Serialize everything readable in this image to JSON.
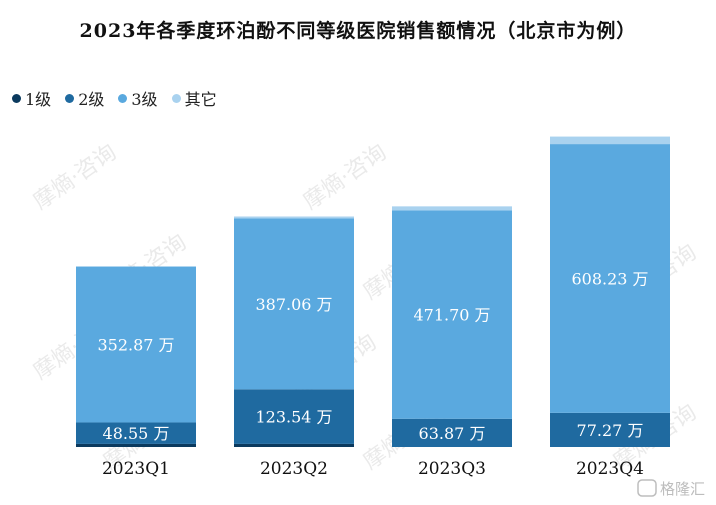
{
  "chart_data": {
    "type": "bar",
    "title": "2023年各季度环泊酚不同等级医院销售额情况（北京市为例）",
    "categories": [
      "2023Q1",
      "2023Q2",
      "2023Q3",
      "2023Q4"
    ],
    "series": [
      {
        "name": "1级",
        "color": "#0b3a5e",
        "values": [
          7,
          7,
          0,
          0
        ]
      },
      {
        "name": "2级",
        "color": "#1f6aa0",
        "values": [
          48.55,
          123.54,
          63.87,
          77.27
        ]
      },
      {
        "name": "3级",
        "color": "#5aa9df",
        "values": [
          352.87,
          387.06,
          471.7,
          608.23
        ]
      },
      {
        "name": "其它",
        "color": "#a9d2ef",
        "values": [
          0,
          4,
          9,
          17
        ]
      }
    ],
    "data_labels": [
      {
        "category": "2023Q1",
        "series": "2级",
        "text": "48.55 万"
      },
      {
        "category": "2023Q1",
        "series": "3级",
        "text": "352.87 万"
      },
      {
        "category": "2023Q2",
        "series": "2级",
        "text": "123.54 万"
      },
      {
        "category": "2023Q2",
        "series": "3级",
        "text": "387.06 万"
      },
      {
        "category": "2023Q3",
        "series": "2级",
        "text": "63.87 万"
      },
      {
        "category": "2023Q3",
        "series": "3级",
        "text": "471.70 万"
      },
      {
        "category": "2023Q4",
        "series": "2级",
        "text": "77.27 万"
      },
      {
        "category": "2023Q4",
        "series": "3级",
        "text": "608.23 万"
      }
    ],
    "ylim": [
      0,
      740
    ],
    "grid": false,
    "legend_position": "top-left",
    "xlabel": "",
    "ylabel": ""
  },
  "watermark": "摩熵·咨询",
  "corner_logo": "格隆汇"
}
